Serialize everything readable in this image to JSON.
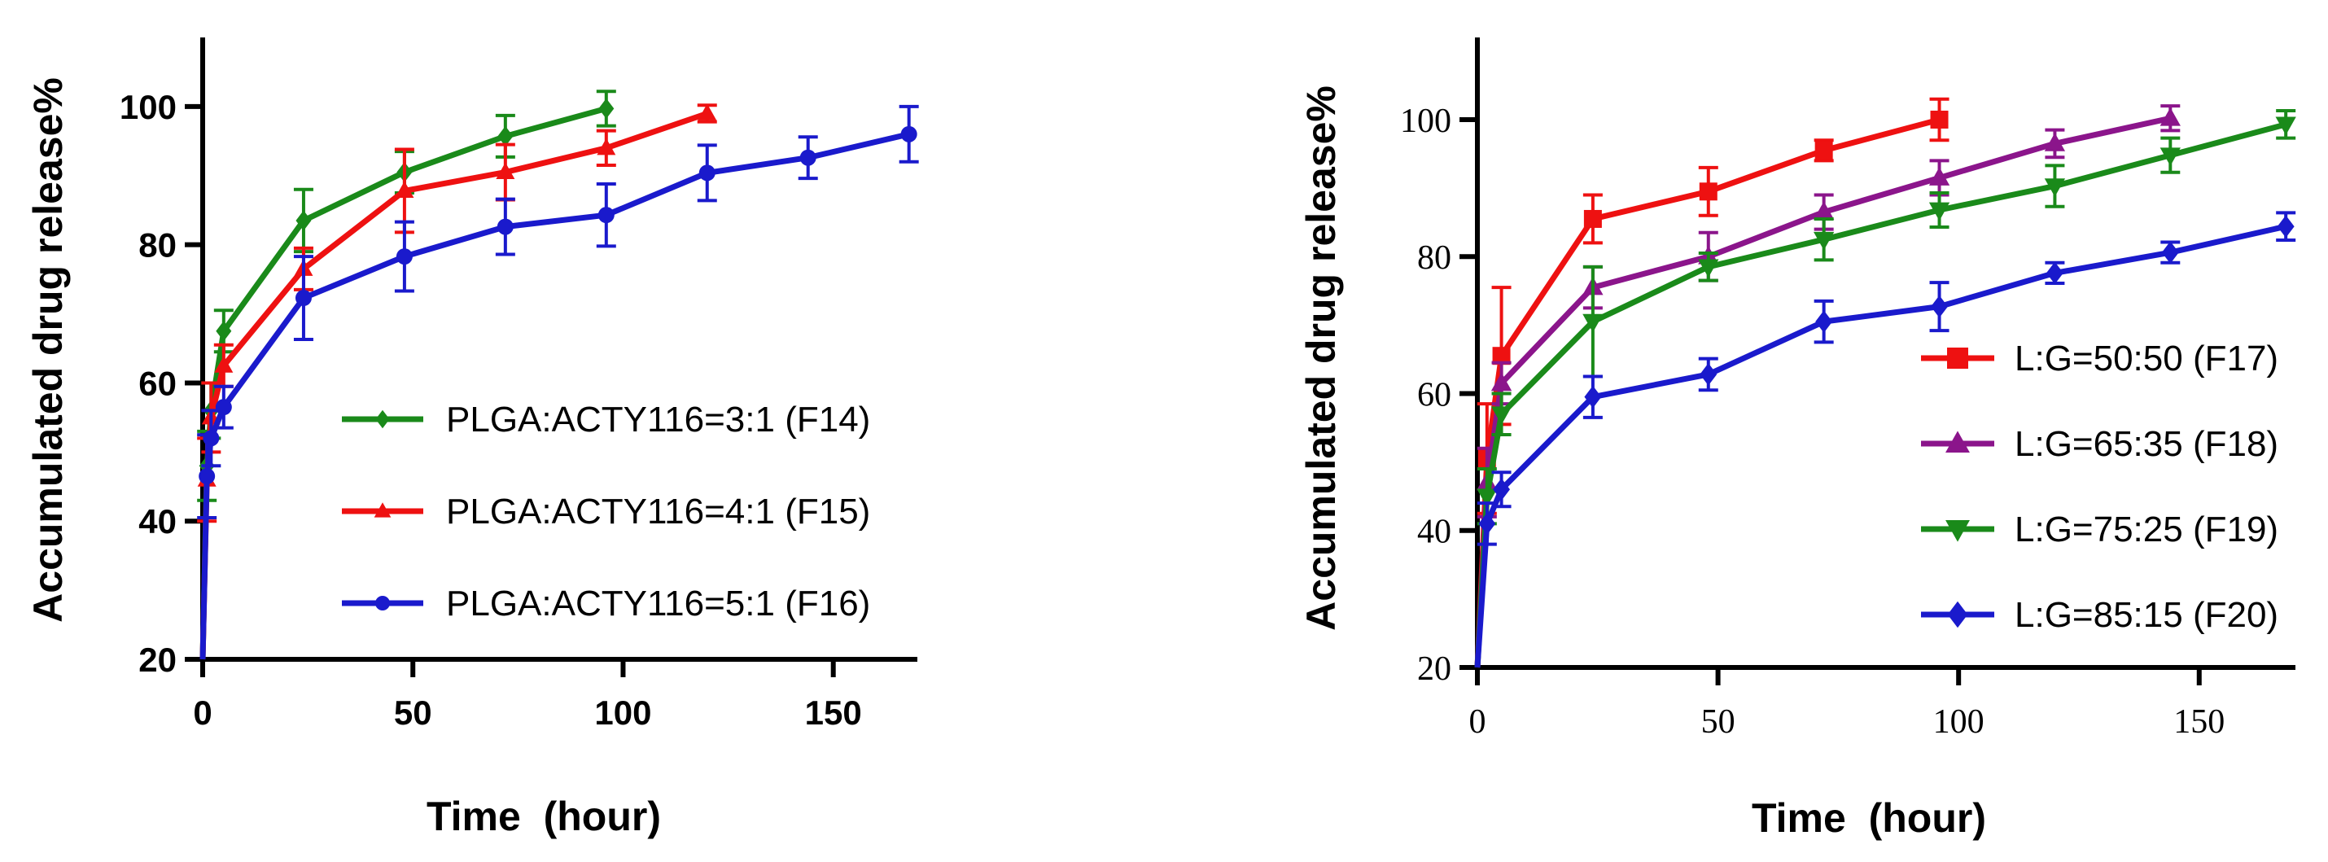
{
  "chart_data": [
    {
      "type": "line",
      "title": "",
      "xlabel": "Time  (hour)",
      "ylabel": "Accumulated drug release%",
      "xlim": [
        0,
        170
      ],
      "ylim": [
        20,
        110
      ],
      "xticks": [
        0,
        50,
        100,
        150
      ],
      "yticks": [
        20,
        40,
        60,
        80,
        100
      ],
      "xtick_labels": [
        "0",
        "50",
        "100",
        "150"
      ],
      "ytick_labels": [
        "20",
        "40",
        "60",
        "80",
        "100"
      ],
      "legend_position": "center-right",
      "series": [
        {
          "name": "PLGA:ACTY116=3:1 (F14)",
          "color": "#1a8a1a",
          "marker": "diamond",
          "x": [
            0,
            1,
            2,
            5,
            24,
            48,
            72,
            96
          ],
          "y": [
            20,
            48,
            56,
            67.5,
            83.5,
            90.5,
            95.7,
            99.7
          ],
          "err": [
            0,
            5,
            4,
            3,
            4.5,
            3,
            3,
            2.5
          ]
        },
        {
          "name": "PLGA:ACTY116=4:1 (F15)",
          "color": "#ee1111",
          "marker": "triangle",
          "x": [
            0,
            1,
            2,
            5,
            24,
            48,
            72,
            96,
            120
          ],
          "y": [
            20,
            46,
            55,
            62.5,
            76.5,
            87.8,
            90.5,
            94,
            99
          ],
          "err": [
            0,
            6,
            5,
            3,
            3,
            6,
            4,
            2.5,
            1.2
          ]
        },
        {
          "name": "PLGA:ACTY116=5:1 (F16)",
          "color": "#1a1acc",
          "marker": "circle",
          "x": [
            0,
            1,
            2,
            5,
            24,
            48,
            72,
            96,
            120,
            144,
            168
          ],
          "y": [
            20,
            46.5,
            52,
            56.5,
            72.3,
            78.3,
            82.6,
            84.3,
            90.4,
            92.6,
            96
          ],
          "err": [
            0,
            6,
            4,
            3,
            6,
            5,
            4,
            4.5,
            4,
            3,
            4
          ]
        }
      ]
    },
    {
      "type": "line",
      "title": "",
      "xlabel": "Time  (hour)",
      "ylabel": "Accumulated drug release%",
      "xlim": [
        0,
        170
      ],
      "ylim": [
        20,
        112
      ],
      "xticks": [
        0,
        50,
        100,
        150
      ],
      "yticks": [
        20,
        40,
        60,
        80,
        100
      ],
      "xtick_labels": [
        "0",
        "50",
        "100",
        "150"
      ],
      "ytick_labels": [
        "20",
        "40",
        "60",
        "80",
        "100"
      ],
      "legend_position": "right",
      "series": [
        {
          "name": "L:G=50:50 (F17)",
          "color": "#ee1111",
          "marker": "square",
          "x": [
            0,
            2,
            5,
            24,
            48,
            72,
            96
          ],
          "y": [
            20,
            50.5,
            65.5,
            85.5,
            89.5,
            95.5,
            100
          ],
          "err": [
            0,
            8,
            10,
            3.5,
            3.5,
            1.5,
            3
          ]
        },
        {
          "name": "L:G=65:35 (F18)",
          "color": "#8b158b",
          "marker": "triangle",
          "x": [
            0,
            2,
            5,
            24,
            48,
            72,
            96,
            120,
            144
          ],
          "y": [
            20,
            47,
            61.5,
            75.5,
            80,
            86.5,
            91.5,
            96.5,
            100.2
          ],
          "err": [
            0,
            5,
            3,
            3,
            3.5,
            2.5,
            2.5,
            2,
            1.8
          ]
        },
        {
          "name": "L:G=75:25 (F19)",
          "color": "#1a8a1a",
          "marker": "triangle-down",
          "x": [
            0,
            2,
            5,
            24,
            48,
            72,
            96,
            120,
            144,
            168
          ],
          "y": [
            20,
            45,
            57,
            70.5,
            78.5,
            82.5,
            86.8,
            90.3,
            94.8,
            99.3
          ],
          "err": [
            0,
            4,
            3,
            8,
            2,
            3,
            2.5,
            3,
            2.5,
            2
          ]
        },
        {
          "name": "L:G=85:15 (F20)",
          "color": "#1a1acc",
          "marker": "diamond",
          "x": [
            0,
            2,
            5,
            24,
            48,
            72,
            96,
            120,
            144,
            168
          ],
          "y": [
            20,
            41,
            46,
            59.5,
            62.8,
            70.5,
            72.7,
            77.6,
            80.6,
            84.4
          ],
          "err": [
            0,
            3,
            2.5,
            3,
            2.3,
            3,
            3.5,
            1.5,
            1.5,
            2
          ]
        }
      ]
    }
  ]
}
